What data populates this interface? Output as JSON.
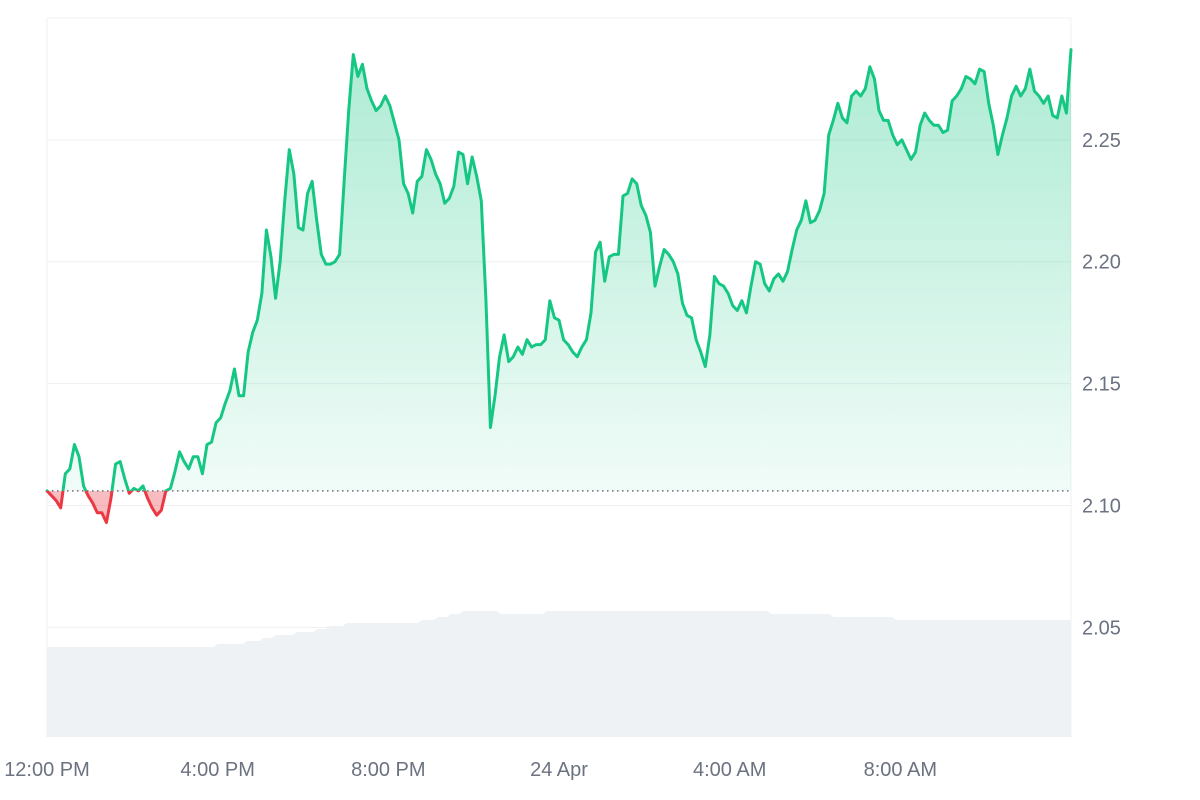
{
  "chart_data": {
    "type": "area",
    "title": "",
    "xlabel": "",
    "ylabel": "",
    "baseline": 2.106,
    "ylim": [
      2.005,
      2.3
    ],
    "y_ticks": [
      "2.05",
      "2.10",
      "2.15",
      "2.20",
      "2.25"
    ],
    "y_tick_values": [
      2.05,
      2.1,
      2.15,
      2.2,
      2.25
    ],
    "x_tick_labels": [
      "12:00 PM",
      "4:00 PM",
      "8:00 PM",
      "24 Apr",
      "4:00 AM",
      "8:00 AM"
    ],
    "x_tick_hours": [
      0,
      4,
      8,
      12,
      16,
      20
    ],
    "x_range_hours": [
      0,
      24
    ],
    "grid": true,
    "legend": "none",
    "colors": {
      "up": "#16c784",
      "down": "#ea3943",
      "grid": "#eef0f3",
      "volume": "#eff2f5",
      "baseline_dots": "#6b7280"
    },
    "series": [
      {
        "values": [
          2.106,
          2.104,
          2.102,
          2.099,
          2.113,
          2.115,
          2.125,
          2.12,
          2.108,
          2.104,
          2.101,
          2.097,
          2.097,
          2.093,
          2.103,
          2.117,
          2.118,
          2.111,
          2.105,
          2.107,
          2.106,
          2.108,
          2.103,
          2.099,
          2.096,
          2.098,
          2.106,
          2.107,
          2.114,
          2.122,
          2.118,
          2.115,
          2.12,
          2.12,
          2.113,
          2.125,
          2.126,
          2.134,
          2.136,
          2.142,
          2.147,
          2.156,
          2.145,
          2.145,
          2.163,
          2.171,
          2.176,
          2.187,
          2.213,
          2.202,
          2.185,
          2.2,
          2.225,
          2.246,
          2.236,
          2.214,
          2.213,
          2.228,
          2.233,
          2.217,
          2.203,
          2.199,
          2.199,
          2.2,
          2.203,
          2.233,
          2.262,
          2.285,
          2.276,
          2.281,
          2.271,
          2.266,
          2.262,
          2.264,
          2.268,
          2.264,
          2.257,
          2.25,
          2.232,
          2.228,
          2.22,
          2.233,
          2.235,
          2.246,
          2.242,
          2.236,
          2.232,
          2.224,
          2.226,
          2.231,
          2.245,
          2.244,
          2.232,
          2.243,
          2.235,
          2.225,
          2.185,
          2.132,
          2.145,
          2.161,
          2.17,
          2.159,
          2.161,
          2.165,
          2.162,
          2.168,
          2.165,
          2.166,
          2.166,
          2.168,
          2.184,
          2.177,
          2.176,
          2.168,
          2.166,
          2.163,
          2.161,
          2.165,
          2.168,
          2.179,
          2.204,
          2.208,
          2.192,
          2.202,
          2.203,
          2.203,
          2.227,
          2.228,
          2.234,
          2.232,
          2.223,
          2.219,
          2.212,
          2.19,
          2.198,
          2.205,
          2.203,
          2.2,
          2.195,
          2.183,
          2.178,
          2.177,
          2.168,
          2.163,
          2.157,
          2.17,
          2.194,
          2.191,
          2.19,
          2.187,
          2.182,
          2.18,
          2.184,
          2.179,
          2.19,
          2.2,
          2.199,
          2.191,
          2.188,
          2.193,
          2.195,
          2.192,
          2.196,
          2.205,
          2.213,
          2.217,
          2.225,
          2.216,
          2.217,
          2.221,
          2.228,
          2.252,
          2.258,
          2.265,
          2.259,
          2.257,
          2.268,
          2.27,
          2.268,
          2.271,
          2.28,
          2.275,
          2.262,
          2.258,
          2.258,
          2.252,
          2.248,
          2.25,
          2.246,
          2.242,
          2.245,
          2.256,
          2.261,
          2.258,
          2.256,
          2.256,
          2.253,
          2.254,
          2.266,
          2.268,
          2.271,
          2.276,
          2.275,
          2.273,
          2.279,
          2.278,
          2.265,
          2.256,
          2.244,
          2.252,
          2.259,
          2.268,
          2.272,
          2.268,
          2.271,
          2.279,
          2.27,
          2.268,
          2.265,
          2.268,
          2.26,
          2.259,
          2.268,
          2.261,
          2.287
        ]
      }
    ],
    "volume": {
      "values": [
        0.3,
        0.3,
        0.3,
        0.3,
        0.3,
        0.3,
        0.3,
        0.3,
        0.3,
        0.3,
        0.3,
        0.3,
        0.3,
        0.3,
        0.3,
        0.3,
        0.3,
        0.3,
        0.3,
        0.3,
        0.3,
        0.3,
        0.3,
        0.3,
        0.3,
        0.3,
        0.3,
        0.3,
        0.3,
        0.3,
        0.3,
        0.3,
        0.3,
        0.3,
        0.3,
        0.3,
        0.3,
        0.3,
        0.3,
        0.3,
        0.3,
        0.31,
        0.31,
        0.31,
        0.31,
        0.31,
        0.31,
        0.31,
        0.32,
        0.32,
        0.32,
        0.32,
        0.33,
        0.33,
        0.33,
        0.34,
        0.34,
        0.34,
        0.34,
        0.34,
        0.35,
        0.35,
        0.35,
        0.35,
        0.35,
        0.36,
        0.36,
        0.36,
        0.37,
        0.37,
        0.37,
        0.37,
        0.38,
        0.38,
        0.38,
        0.38,
        0.38,
        0.38,
        0.38,
        0.38,
        0.38,
        0.38,
        0.38,
        0.38,
        0.38,
        0.38,
        0.38,
        0.38,
        0.38,
        0.38,
        0.39,
        0.39,
        0.39,
        0.39,
        0.4,
        0.4,
        0.4,
        0.41,
        0.41,
        0.41,
        0.42,
        0.42,
        0.42,
        0.42,
        0.42,
        0.42,
        0.42,
        0.42,
        0.42,
        0.41,
        0.41,
        0.41,
        0.41,
        0.41,
        0.41,
        0.41,
        0.41,
        0.41,
        0.41,
        0.41,
        0.42,
        0.42,
        0.42,
        0.42,
        0.42,
        0.42,
        0.42,
        0.42,
        0.42,
        0.42,
        0.42,
        0.42,
        0.42,
        0.42,
        0.42,
        0.42,
        0.42,
        0.42,
        0.42,
        0.42,
        0.42,
        0.42,
        0.42,
        0.42,
        0.42,
        0.42,
        0.42,
        0.42,
        0.42,
        0.42,
        0.42,
        0.42,
        0.42,
        0.42,
        0.42,
        0.42,
        0.42,
        0.42,
        0.42,
        0.42,
        0.42,
        0.42,
        0.42,
        0.42,
        0.42,
        0.42,
        0.42,
        0.42,
        0.42,
        0.42,
        0.42,
        0.42,
        0.42,
        0.42,
        0.41,
        0.41,
        0.41,
        0.41,
        0.41,
        0.41,
        0.41,
        0.41,
        0.41,
        0.41,
        0.41,
        0.41,
        0.41,
        0.41,
        0.41,
        0.4,
        0.4,
        0.4,
        0.4,
        0.4,
        0.4,
        0.4,
        0.4,
        0.4,
        0.4,
        0.4,
        0.4,
        0.4,
        0.4,
        0.4,
        0.39,
        0.39,
        0.39,
        0.39,
        0.39,
        0.39,
        0.39,
        0.39,
        0.39,
        0.39,
        0.39,
        0.39,
        0.39,
        0.39,
        0.39,
        0.39,
        0.39,
        0.39,
        0.39,
        0.39,
        0.39,
        0.39,
        0.39,
        0.39,
        0.39,
        0.39,
        0.39,
        0.39,
        0.39,
        0.39,
        0.39,
        0.39,
        0.39,
        0.39,
        0.39,
        0.39,
        0.39,
        0.39,
        0.39,
        0.39,
        0.39,
        0.39,
        0.39
      ]
    }
  }
}
